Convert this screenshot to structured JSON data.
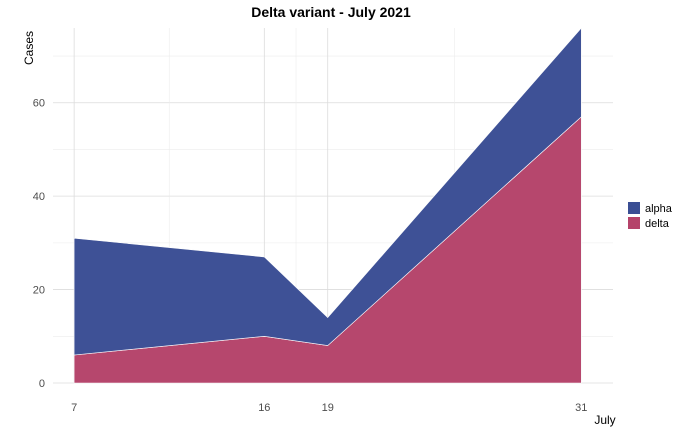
{
  "chart_data": {
    "type": "area",
    "stacked": true,
    "title": "Delta variant - July 2021",
    "xlabel": "July",
    "ylabel": "Cases",
    "x": [
      7,
      16,
      19,
      31
    ],
    "x_tick_labels": [
      "7",
      "16",
      "19",
      "31"
    ],
    "xlim": [
      6,
      32.5
    ],
    "ylim": [
      0,
      76
    ],
    "y_ticks": [
      0,
      20,
      40,
      60
    ],
    "series": [
      {
        "name": "delta",
        "values": [
          6,
          10,
          8,
          57
        ],
        "color": "#B5436A"
      },
      {
        "name": "alpha",
        "values": [
          25,
          17,
          6,
          19
        ],
        "color": "#3A4E94"
      }
    ],
    "legend_position": "right",
    "grid": true
  }
}
